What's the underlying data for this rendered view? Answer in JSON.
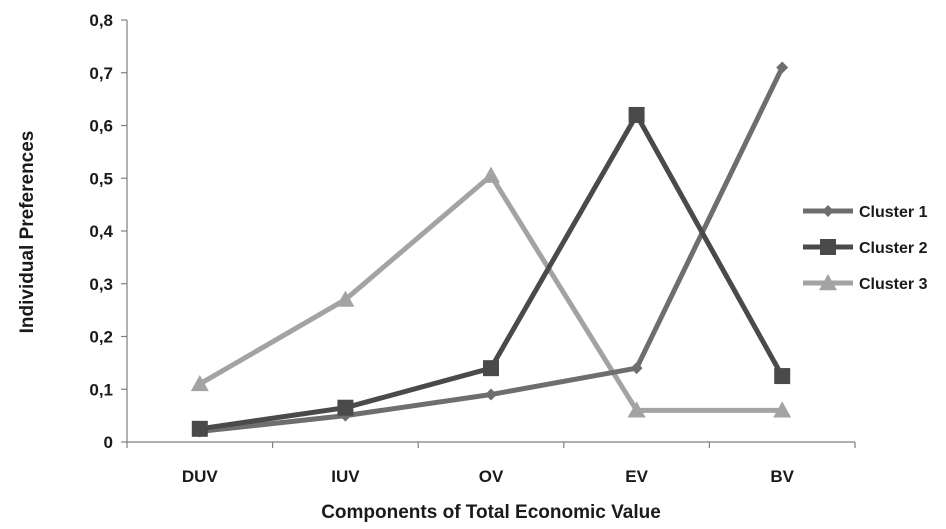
{
  "chart_data": {
    "type": "line",
    "categories": [
      "DUV",
      "IUV",
      "OV",
      "EV",
      "BV"
    ],
    "xlabel": "Components of Total Economic Value",
    "ylabel": "Individual Preferences",
    "ylim": [
      0,
      0.8
    ],
    "yticks": [
      0,
      0.1,
      0.2,
      0.3,
      0.4,
      0.5,
      0.6,
      0.7,
      0.8
    ],
    "ytick_labels": [
      "0",
      "0,1",
      "0,2",
      "0,3",
      "0,4",
      "0,5",
      "0,6",
      "0,7",
      "0,8"
    ],
    "grid": false,
    "legend_position": "right",
    "series": [
      {
        "name": "Cluster 1",
        "values": [
          0.02,
          0.05,
          0.09,
          0.14,
          0.71
        ],
        "color": "#6e6e6e",
        "marker": "diamond"
      },
      {
        "name": "Cluster 2",
        "values": [
          0.025,
          0.065,
          0.14,
          0.62,
          0.125
        ],
        "color": "#4a4a4a",
        "marker": "square"
      },
      {
        "name": "Cluster 3",
        "values": [
          0.11,
          0.27,
          0.505,
          0.06,
          0.06
        ],
        "color": "#a3a3a3",
        "marker": "triangle"
      }
    ]
  }
}
